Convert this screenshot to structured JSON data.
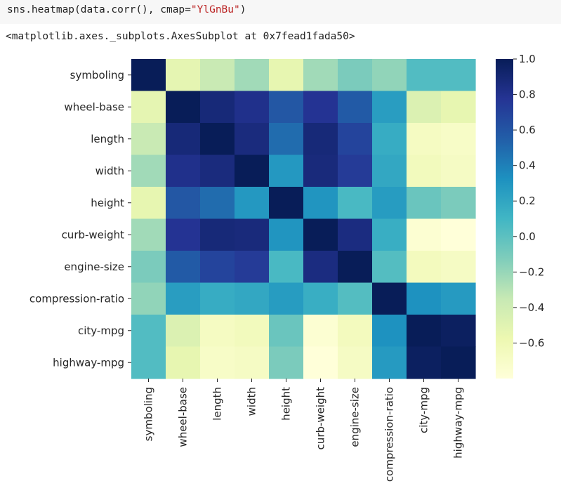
{
  "code": {
    "prefix": "sns.heatmap(data.corr(), cmap=",
    "string_arg": "\"YlGnBu\"",
    "suffix": ")"
  },
  "output_text": "<matplotlib.axes._subplots.AxesSubplot at 0x7fead1fada50>",
  "colormap": {
    "name": "YlGnBu",
    "stops": [
      "#ffffd9",
      "#edf8b1",
      "#c7e9b4",
      "#7fcdbb",
      "#41b6c4",
      "#1d91c0",
      "#225ea8",
      "#253494",
      "#081d58"
    ]
  },
  "chart_data": {
    "type": "heatmap",
    "title": "",
    "xlabel": "",
    "ylabel": "",
    "rows": [
      "symboling",
      "wheel-base",
      "length",
      "width",
      "height",
      "curb-weight",
      "engine-size",
      "compression-ratio",
      "city-mpg",
      "highway-mpg"
    ],
    "columns": [
      "symboling",
      "wheel-base",
      "length",
      "width",
      "height",
      "curb-weight",
      "engine-size",
      "compression-ratio",
      "city-mpg",
      "highway-mpg"
    ],
    "values": [
      [
        1.0,
        -0.53,
        -0.36,
        -0.23,
        -0.54,
        -0.23,
        -0.11,
        -0.18,
        0.04,
        0.04
      ],
      [
        -0.53,
        1.0,
        0.88,
        0.81,
        0.59,
        0.78,
        0.57,
        0.25,
        -0.47,
        -0.54
      ],
      [
        -0.36,
        0.88,
        1.0,
        0.86,
        0.49,
        0.88,
        0.69,
        0.16,
        -0.67,
        -0.7
      ],
      [
        -0.23,
        0.81,
        0.86,
        1.0,
        0.28,
        0.87,
        0.74,
        0.19,
        -0.64,
        -0.68
      ],
      [
        -0.54,
        0.59,
        0.49,
        0.28,
        1.0,
        0.3,
        0.07,
        0.26,
        -0.05,
        -0.11
      ],
      [
        -0.23,
        0.78,
        0.88,
        0.87,
        0.3,
        1.0,
        0.85,
        0.15,
        -0.76,
        -0.8
      ],
      [
        -0.11,
        0.57,
        0.69,
        0.74,
        0.07,
        0.85,
        1.0,
        0.03,
        -0.65,
        -0.68
      ],
      [
        -0.18,
        0.25,
        0.16,
        0.19,
        0.26,
        0.15,
        0.03,
        1.0,
        0.32,
        0.27
      ],
      [
        0.04,
        -0.47,
        -0.67,
        -0.64,
        -0.05,
        -0.76,
        -0.65,
        0.32,
        1.0,
        0.97
      ],
      [
        0.04,
        -0.54,
        -0.7,
        -0.68,
        -0.11,
        -0.8,
        -0.68,
        0.27,
        0.97,
        1.0
      ]
    ],
    "vmin": -0.8,
    "vmax": 1.0,
    "colorbar_ticks": [
      1.0,
      0.8,
      0.6,
      0.4,
      0.2,
      0.0,
      -0.2,
      -0.4,
      -0.6
    ],
    "colorbar_tick_labels": [
      "1.0",
      "0.8",
      "0.6",
      "0.4",
      "0.2",
      "0.0",
      "−0.2",
      "−0.4",
      "−0.6"
    ],
    "grid": false,
    "colorbar_position": "right"
  }
}
